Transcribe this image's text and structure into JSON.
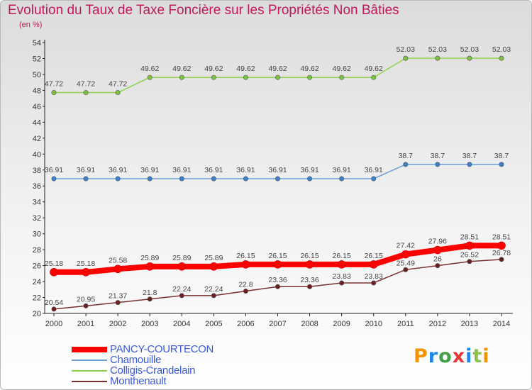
{
  "header": {
    "title": "Evolution du Taux de Taxe Foncière sur les Propriétés Non Bâties",
    "unit": "(en %)"
  },
  "logo": {
    "text": "Proxiti",
    "letters": [
      "P",
      "r",
      "o",
      "x",
      "i",
      "t",
      "i"
    ],
    "colors": [
      "#f29400",
      "#1e88e5",
      "#43a047",
      "#e53935",
      "#1e88e5",
      "#8bc34a",
      "#f29400"
    ]
  },
  "chart_data": {
    "type": "line",
    "title": "Evolution du Taux de Taxe Foncière sur les Propriétés Non Bâties",
    "ylabel": "(en %)",
    "x": [
      "2000",
      "2001",
      "2002",
      "2003",
      "2004",
      "2005",
      "2006",
      "2007",
      "2008",
      "2009",
      "2010",
      "2011",
      "2012",
      "2013",
      "2014"
    ],
    "ylim": [
      20,
      54
    ],
    "yticks": [
      20,
      22,
      24,
      26,
      28,
      30,
      32,
      34,
      36,
      38,
      40,
      42,
      44,
      46,
      48,
      50,
      52,
      54
    ],
    "grid": false,
    "legend_position": "bottom-left",
    "series": [
      {
        "name": "PANCY-COURTECON",
        "color": "#ff0000",
        "width": 8,
        "marker": "#ff0000",
        "values": [
          25.18,
          25.18,
          25.58,
          25.89,
          25.89,
          25.89,
          26.15,
          26.15,
          26.15,
          26.15,
          26.15,
          27.42,
          27.96,
          28.51,
          28.51
        ],
        "labels": [
          "25.18",
          "25.18",
          "25.58",
          "25.89",
          "25.89",
          "25.89",
          "26.15",
          "26.15",
          "26.15",
          "26.15",
          "26.15",
          "27.42",
          "27.96",
          "28.51",
          "28.51"
        ]
      },
      {
        "name": "Chamouille",
        "color": "#6a9fd6",
        "width": 1.5,
        "marker": "#3b82d0",
        "values": [
          36.91,
          36.91,
          36.91,
          36.91,
          36.91,
          36.91,
          36.91,
          36.91,
          36.91,
          36.91,
          36.91,
          38.7,
          38.7,
          38.7,
          38.7
        ],
        "labels": [
          "36.91",
          "36.91",
          "36.91",
          "36.91",
          "36.91",
          "36.91",
          "36.91",
          "36.91",
          "36.91",
          "36.91",
          "36.91",
          "38.7",
          "38.7",
          "38.7",
          "38.7"
        ]
      },
      {
        "name": "Colligis-Crandelain",
        "color": "#8fd14f",
        "width": 1.5,
        "marker": "#7cc341",
        "values": [
          47.72,
          47.72,
          47.72,
          49.62,
          49.62,
          49.62,
          49.62,
          49.62,
          49.62,
          49.62,
          49.62,
          52.03,
          52.03,
          52.03,
          52.03
        ],
        "labels": [
          "47.72",
          "47.72",
          "47.72",
          "49.62",
          "49.62",
          "49.62",
          "49.62",
          "49.62",
          "49.62",
          "49.62",
          "49.62",
          "52.03",
          "52.03",
          "52.03",
          "52.03"
        ]
      },
      {
        "name": "Monthenault",
        "color": "#7b3030",
        "width": 1.5,
        "marker": "#6b2020",
        "values": [
          20.54,
          20.95,
          21.37,
          21.8,
          22.24,
          22.24,
          22.8,
          23.36,
          23.36,
          23.83,
          23.83,
          25.49,
          26,
          26.52,
          26.78
        ],
        "labels": [
          "20.54",
          "20.95",
          "21.37",
          "21.8",
          "22.24",
          "22.24",
          "22.8",
          "23.36",
          "23.36",
          "23.83",
          "23.83",
          "25.49",
          "26",
          "26.52",
          "26.78"
        ]
      }
    ]
  }
}
